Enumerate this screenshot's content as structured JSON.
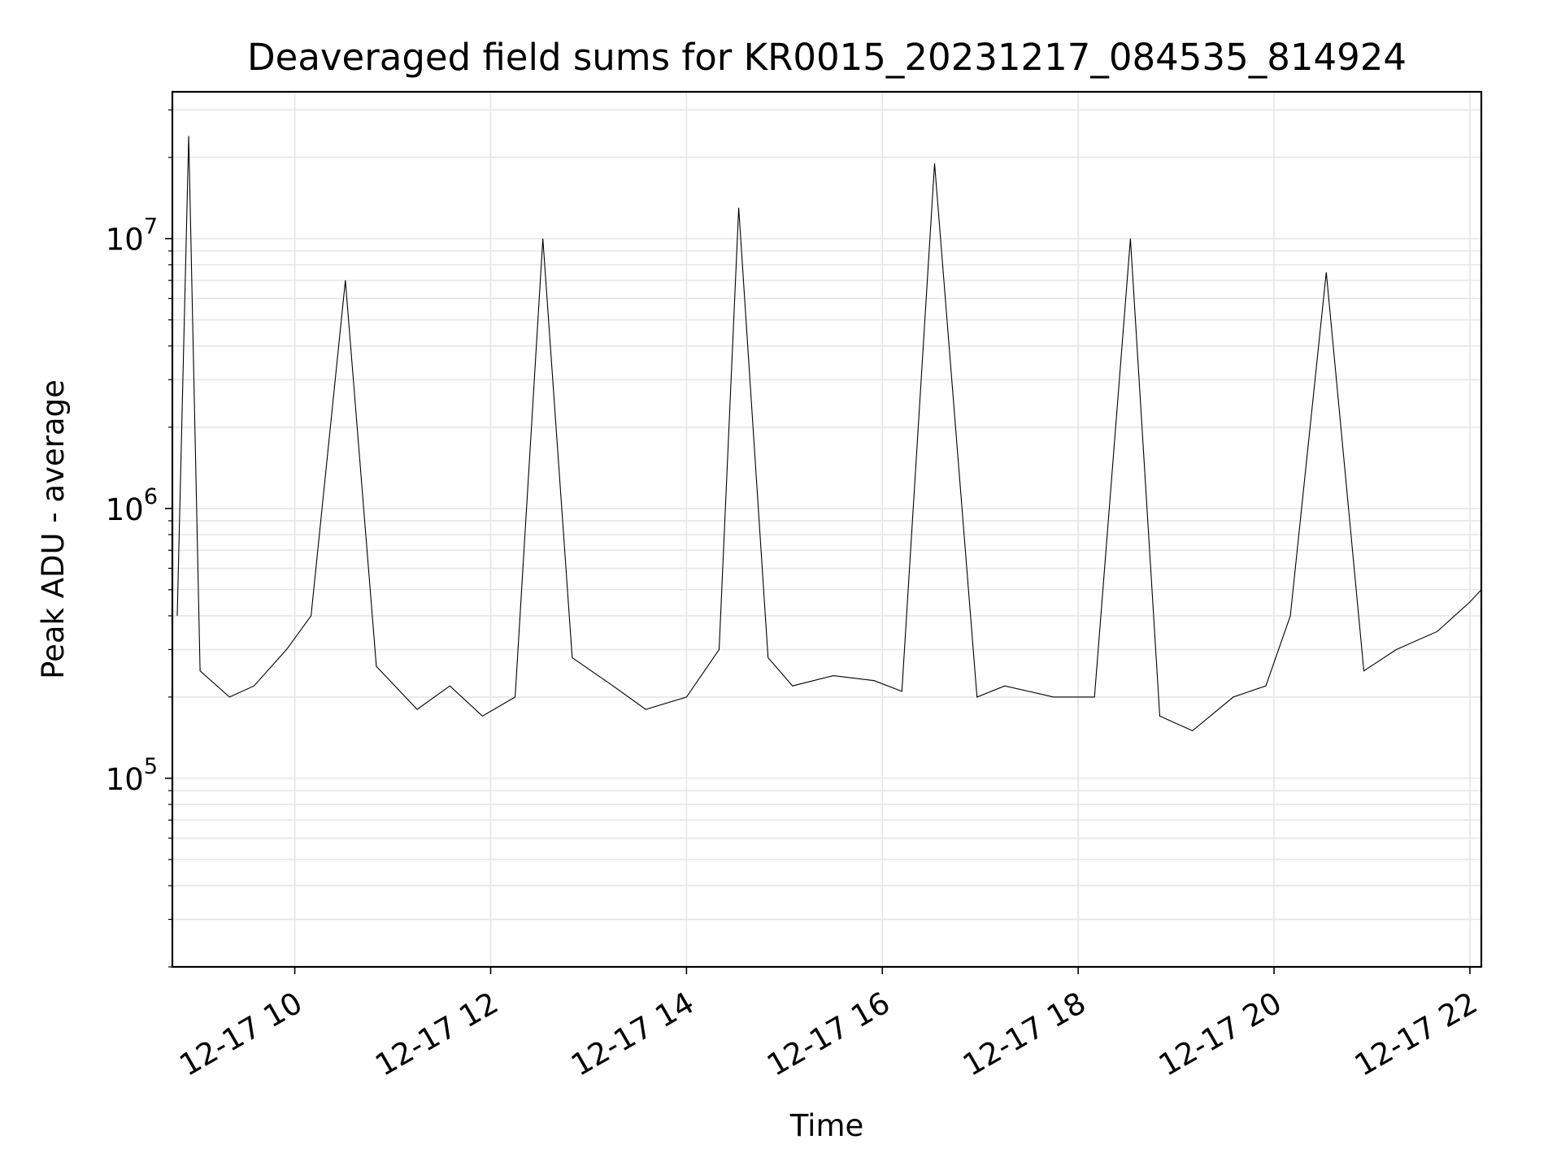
{
  "chart_data": {
    "type": "line",
    "title": "Deaveraged field sums for KR0015_20231217_084535_814924",
    "xlabel": "Time",
    "ylabel": "Peak ADU - average",
    "x_scale": "time",
    "y_scale": "log",
    "x_range": [
      "2023-12-17 08:45",
      "2023-12-17 22:07"
    ],
    "y_range": [
      20000,
      35000000
    ],
    "x_ticks": [
      "12-17 10",
      "12-17 12",
      "12-17 14",
      "12-17 16",
      "12-17 18",
      "12-17 20",
      "12-17 22"
    ],
    "y_ticks": [
      {
        "value": 100000,
        "base": "10",
        "exp": "5"
      },
      {
        "value": 1000000,
        "base": "10",
        "exp": "6"
      },
      {
        "value": 10000000,
        "base": "10",
        "exp": "7"
      }
    ],
    "grid": true,
    "grid_minor_y": true,
    "line_color": "#000000",
    "grid_color": "#e6e6e6",
    "series": [
      {
        "x": [
          "2023-12-17 08:48",
          "2023-12-17 08:55",
          "2023-12-17 09:02",
          "2023-12-17 09:20",
          "2023-12-17 09:35",
          "2023-12-17 09:55",
          "2023-12-17 10:10",
          "2023-12-17 10:31",
          "2023-12-17 10:50",
          "2023-12-17 11:15",
          "2023-12-17 11:35",
          "2023-12-17 11:55",
          "2023-12-17 12:15",
          "2023-12-17 12:32",
          "2023-12-17 12:50",
          "2023-12-17 13:15",
          "2023-12-17 13:35",
          "2023-12-17 14:00",
          "2023-12-17 14:20",
          "2023-12-17 14:32",
          "2023-12-17 14:50",
          "2023-12-17 15:05",
          "2023-12-17 15:30",
          "2023-12-17 15:55",
          "2023-12-17 16:12",
          "2023-12-17 16:32",
          "2023-12-17 16:58",
          "2023-12-17 17:15",
          "2023-12-17 17:45",
          "2023-12-17 18:10",
          "2023-12-17 18:32",
          "2023-12-17 18:50",
          "2023-12-17 19:10",
          "2023-12-17 19:35",
          "2023-12-17 19:55",
          "2023-12-17 20:10",
          "2023-12-17 20:32",
          "2023-12-17 20:55",
          "2023-12-17 21:15",
          "2023-12-17 21:40",
          "2023-12-17 22:00",
          "2023-12-17 22:07"
        ],
        "y": [
          400000,
          24000000,
          250000,
          200000,
          220000,
          300000,
          400000,
          7000000,
          260000,
          180000,
          220000,
          170000,
          200000,
          10000000,
          280000,
          220000,
          180000,
          200000,
          300000,
          13000000,
          280000,
          220000,
          240000,
          230000,
          210000,
          19000000,
          200000,
          220000,
          200000,
          200000,
          10000000,
          170000,
          150000,
          200000,
          220000,
          400000,
          7500000,
          250000,
          300000,
          350000,
          450000,
          500000
        ]
      }
    ]
  }
}
